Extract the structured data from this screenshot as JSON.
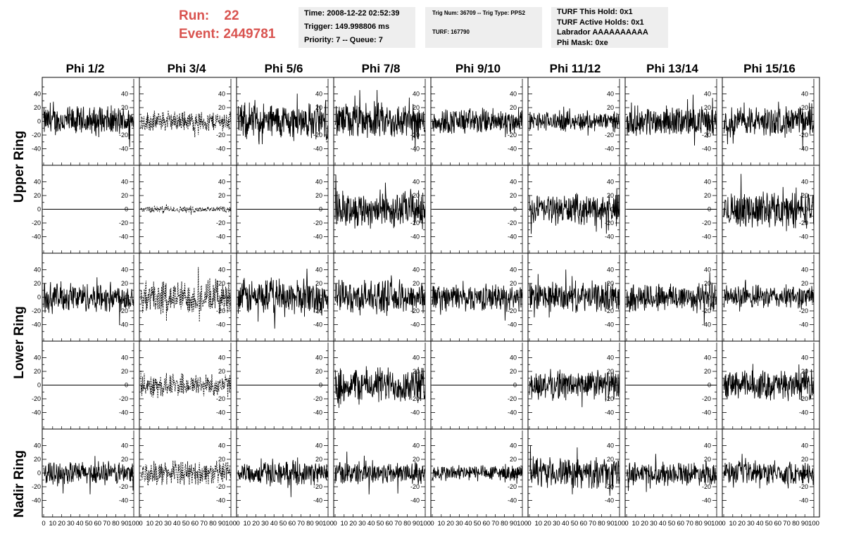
{
  "run": {
    "run_label": "Run:",
    "run_value": "22",
    "event_label": "Event:",
    "event_value": "2449781"
  },
  "header_box1": {
    "line1": "Time: 2008-12-22 02:52:39",
    "line2": "Trigger: 149.998806 ms",
    "line3": "Priority: 7 -- Queue: 7"
  },
  "header_box2": {
    "line1": "Trig Num: 36709 -- Trig Type: PPS2",
    "line2": "TURF: 167790"
  },
  "header_box3": {
    "line1": "TURF This Hold: 0x1",
    "line2": "TURF Active Holds: 0x1",
    "line3": "Labrador AAAAAAAAAA",
    "line4": "Phi Mask: 0xe"
  },
  "columns": [
    "Phi 1/2",
    "Phi 3/4",
    "Phi 5/6",
    "Phi 7/8",
    "Phi 9/10",
    "Phi 11/12",
    "Phi 13/14",
    "Phi 15/16"
  ],
  "rings": [
    "Upper Ring",
    "Lower Ring",
    "Nadir Ring"
  ],
  "y_ticks": [
    "40",
    "20",
    "0",
    "-20",
    "-40"
  ],
  "x_ticks": [
    "0",
    "10",
    "20",
    "30",
    "40",
    "50",
    "60",
    "70",
    "80",
    "90",
    "100"
  ],
  "colors": {
    "accent": "#d9534f",
    "box_bg": "#eeeeee",
    "trace": "#000000"
  },
  "chart_data": {
    "type": "line",
    "title": "",
    "xlim": [
      0,
      100
    ],
    "ylim": [
      -60,
      60
    ],
    "grid": false,
    "panel_rows": 5,
    "panel_cols": 8,
    "panel_kinds": [
      [
        "noise",
        "dashed",
        "noise",
        "noise",
        "noise",
        "noise",
        "noise",
        "noise"
      ],
      [
        "flat",
        "dashed-small",
        "flat",
        "noise",
        "flat",
        "noise",
        "flat",
        "noise"
      ],
      [
        "noise",
        "dashed",
        "noise",
        "noise",
        "noise",
        "noise",
        "noise",
        "noise"
      ],
      [
        "flat",
        "dashed-small",
        "flat",
        "noise",
        "flat",
        "noise",
        "flat",
        "noise"
      ],
      [
        "noise",
        "dashed",
        "noise",
        "noise",
        "noise",
        "noise",
        "noise",
        "noise"
      ]
    ],
    "panel_amplitude": [
      [
        18,
        12,
        22,
        22,
        16,
        12,
        18,
        18
      ],
      [
        0,
        4,
        0,
        22,
        0,
        18,
        0,
        22
      ],
      [
        18,
        20,
        22,
        20,
        16,
        18,
        18,
        14
      ],
      [
        0,
        14,
        0,
        22,
        0,
        18,
        0,
        18
      ],
      [
        14,
        14,
        14,
        14,
        10,
        18,
        14,
        14
      ]
    ]
  }
}
